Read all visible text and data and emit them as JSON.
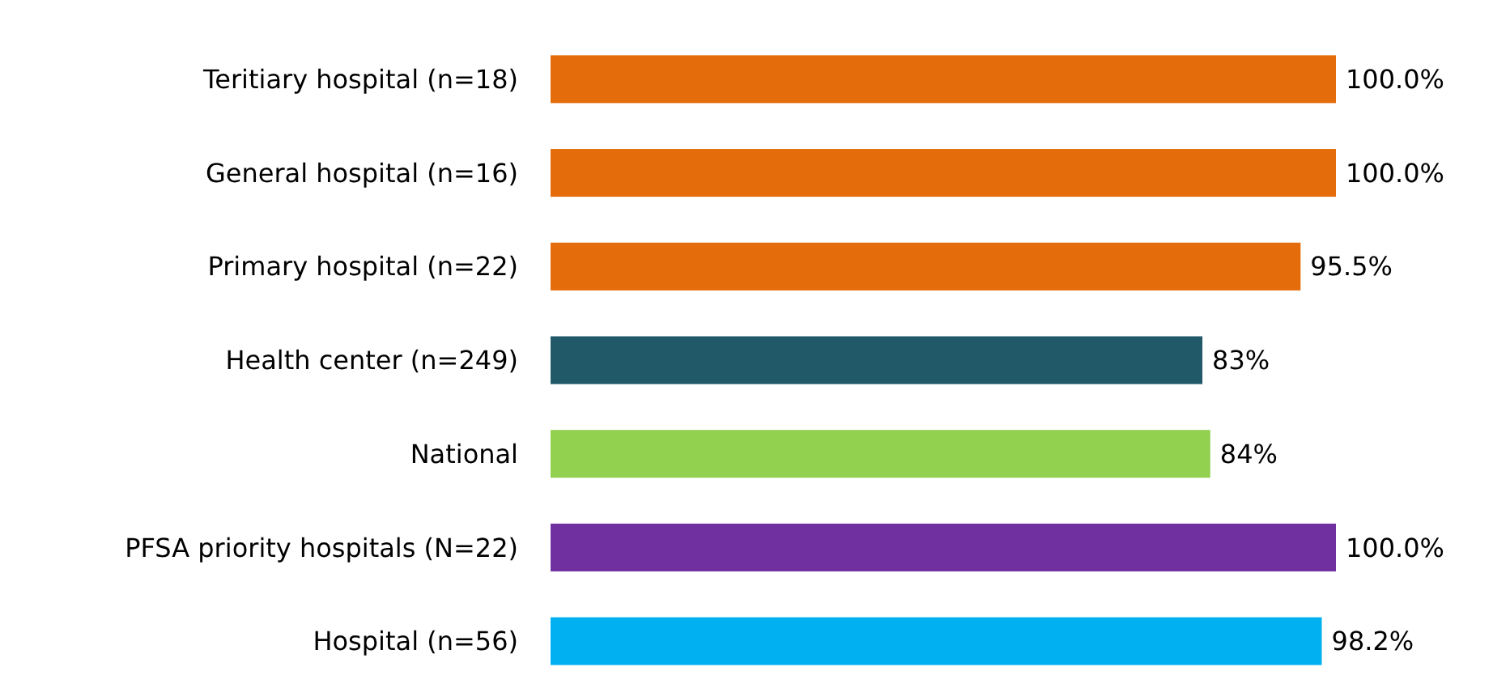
{
  "chart_data": {
    "type": "bar",
    "orientation": "horizontal",
    "categories": [
      "Teritiary hospital (n=18)",
      "General hospital (n=16)",
      "Primary hospital (n=22)",
      "Health center (n=249)",
      "National",
      "PFSA priority hospitals (N=22)",
      "Hospital (n=56)"
    ],
    "values": [
      100,
      100,
      95.5,
      83,
      84,
      100,
      98.2
    ],
    "colors": [
      "#e46c0a",
      "#e46c0a",
      "#e46c0a",
      "#215968",
      "#92d050",
      "#7030a0",
      "#00b0f0"
    ],
    "value_labels": [
      "100.0%",
      "100.0%",
      "95.5%",
      "83%",
      "84%",
      "100.0%",
      "98.2%"
    ]
  }
}
